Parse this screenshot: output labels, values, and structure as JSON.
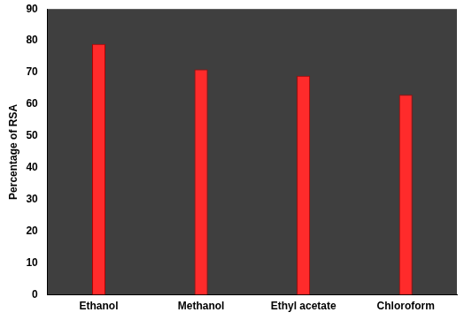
{
  "chart_data": {
    "type": "bar",
    "y_label": "Percentage of RSA",
    "categories": [
      "Ethanol",
      "Methanol",
      "Ethyl acetate",
      "Chloroform"
    ],
    "values": [
      79,
      71,
      69,
      63
    ],
    "color": "#ff2b2b",
    "ylim": [
      0,
      90
    ],
    "yticks": [
      0,
      10,
      20,
      30,
      40,
      50,
      60,
      70,
      80,
      90
    ],
    "grid": false
  }
}
